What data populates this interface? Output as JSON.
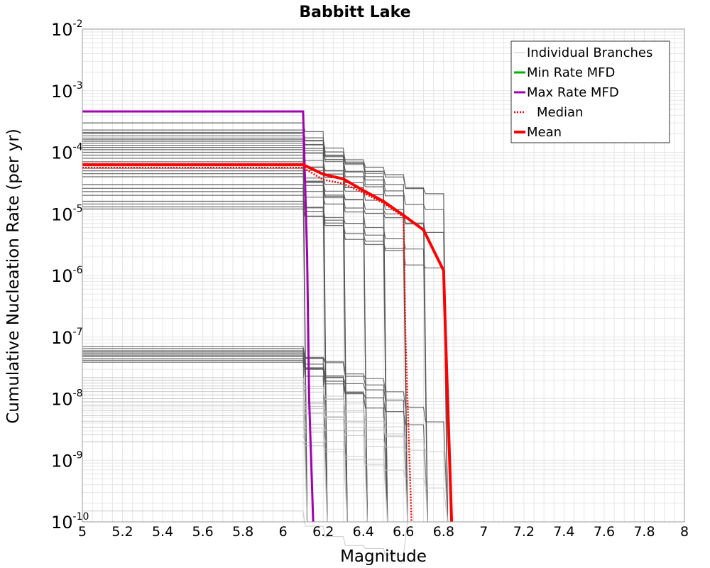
{
  "chart_data": {
    "type": "line",
    "title": "Babbitt Lake",
    "xlabel": "Magnitude",
    "ylabel": "Cumulative Nucleation Rate (per yr)",
    "xlim": [
      5,
      8
    ],
    "ylim": [
      1e-10,
      0.01
    ],
    "y_scale": "log",
    "grid": true,
    "legend_position": "top-right",
    "x_ticks": [
      {
        "value": 5.0,
        "label": "5"
      },
      {
        "value": 5.2,
        "label": "5.2"
      },
      {
        "value": 5.4,
        "label": "5.4"
      },
      {
        "value": 5.6,
        "label": "5.6"
      },
      {
        "value": 5.8,
        "label": "5.8"
      },
      {
        "value": 6.0,
        "label": "6"
      },
      {
        "value": 6.2,
        "label": "6.2"
      },
      {
        "value": 6.4,
        "label": "6.4"
      },
      {
        "value": 6.6,
        "label": "6.6"
      },
      {
        "value": 6.8,
        "label": "6.8"
      },
      {
        "value": 7.0,
        "label": "7"
      },
      {
        "value": 7.2,
        "label": "7.2"
      },
      {
        "value": 7.4,
        "label": "7.4"
      },
      {
        "value": 7.6,
        "label": "7.6"
      },
      {
        "value": 7.8,
        "label": "7.8"
      },
      {
        "value": 8.0,
        "label": "8"
      }
    ],
    "y_ticks": [
      {
        "value": 0.01,
        "base": "10",
        "exp": "-2"
      },
      {
        "value": 0.001,
        "base": "10",
        "exp": "-3"
      },
      {
        "value": 0.0001,
        "base": "10",
        "exp": "-4"
      },
      {
        "value": 1e-05,
        "base": "10",
        "exp": "-5"
      },
      {
        "value": 1e-06,
        "base": "10",
        "exp": "-6"
      },
      {
        "value": 1e-07,
        "base": "10",
        "exp": "-7"
      },
      {
        "value": 1e-08,
        "base": "10",
        "exp": "-8"
      },
      {
        "value": 1e-09,
        "base": "10",
        "exp": "-9"
      },
      {
        "value": 1e-10,
        "base": "10",
        "exp": "-10"
      }
    ],
    "colors": {
      "branch_dark": "#555555",
      "branch_light": "#c4c4c4",
      "min": "#00b000",
      "max": "#a000b0",
      "median": "#ff0000",
      "mean": "#ff0000",
      "grid": "#e6e6e6",
      "frame": "#999999"
    },
    "branch_groups": [
      {
        "rates": [
          0.0003,
          0.00023,
          0.00021,
          0.0002,
          0.000185,
          0.00017,
          0.00016,
          0.00015,
          0.00014,
          0.00013,
          0.00012,
          0.00011,
          0.0001,
          9e-05,
          8e-05,
          7e-05,
          6e-05,
          5.5e-05,
          5e-05,
          4.5e-05,
          4e-05,
          3e-05,
          2.6e-05,
          2.3e-05,
          2e-05,
          1.6e-05,
          1.45e-05,
          1.3e-05,
          1.2e-05
        ],
        "tier": "dark"
      },
      {
        "rates": [
          7e-08,
          6.5e-08,
          6e-08,
          5.7e-08,
          5.4e-08,
          5.1e-08,
          4.8e-08,
          4.5e-08,
          4.2e-08,
          3.9e-08
        ],
        "tier": "dark"
      },
      {
        "rates": [
          2.2e-08,
          2e-08,
          1.8e-08,
          1.6e-08,
          1.45e-08,
          1.3e-08,
          1.15e-08,
          1e-08,
          8.8e-09,
          7.6e-09,
          6.4e-09,
          5.3e-09,
          4.3e-09,
          3.4e-09,
          2.6e-09,
          2e-09,
          1.5e-10
        ],
        "tier": "light"
      }
    ],
    "branch_mmax": [
      6.1,
      6.2,
      6.3,
      6.4,
      6.5,
      6.6,
      6.7,
      6.8
    ],
    "series": [
      {
        "name": "Min Rate MFD",
        "style": "solid",
        "points": []
      },
      {
        "name": "Max Rate MFD",
        "style": "solid",
        "points": [
          [
            5.0,
            0.00046
          ],
          [
            6.1,
            0.00046
          ],
          [
            6.12,
            2e-06
          ],
          [
            6.13,
            1e-08
          ],
          [
            6.15,
            1e-10
          ]
        ]
      },
      {
        "name": "Median",
        "style": "dotted",
        "points": [
          [
            5.0,
            5.6e-05
          ],
          [
            6.1,
            5.6e-05
          ],
          [
            6.2,
            3.6e-05
          ],
          [
            6.3,
            3.1e-05
          ],
          [
            6.4,
            2.2e-05
          ],
          [
            6.5,
            1.5e-05
          ],
          [
            6.6,
            9e-06
          ],
          [
            6.61,
            1e-07
          ],
          [
            6.64,
            1e-10
          ]
        ]
      },
      {
        "name": "Mean",
        "style": "solid",
        "points": [
          [
            5.0,
            6.3e-05
          ],
          [
            6.1,
            6.3e-05
          ],
          [
            6.2,
            4.4e-05
          ],
          [
            6.3,
            3.7e-05
          ],
          [
            6.4,
            2.4e-05
          ],
          [
            6.5,
            1.6e-05
          ],
          [
            6.6,
            9.5e-06
          ],
          [
            6.7,
            5.5e-06
          ],
          [
            6.8,
            1.2e-06
          ],
          [
            6.81,
            1e-07
          ],
          [
            6.84,
            1e-10
          ]
        ]
      }
    ],
    "legend": [
      {
        "label": "Individual Branches",
        "swatch": "branch"
      },
      {
        "label": "Min Rate MFD",
        "swatch": "min"
      },
      {
        "label": "Max Rate MFD",
        "swatch": "max"
      },
      {
        "label": "Median",
        "swatch": "median"
      },
      {
        "label": "Mean",
        "swatch": "mean"
      }
    ]
  }
}
